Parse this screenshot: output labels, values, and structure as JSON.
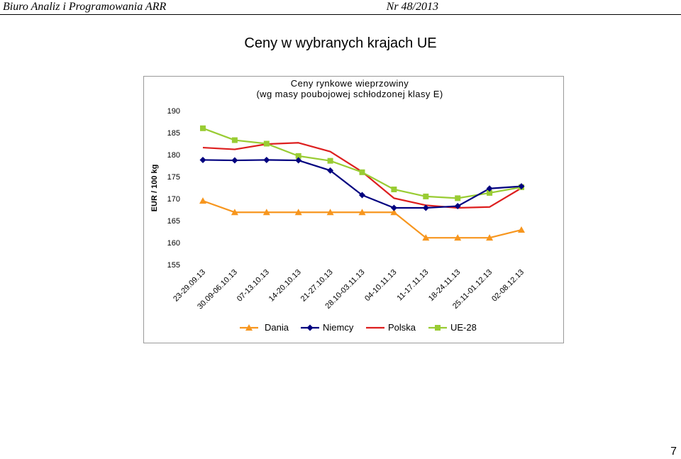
{
  "header": {
    "left": "Biuro Analiz i Programowania ARR",
    "right": "Nr 48/2013"
  },
  "page_title": "Ceny w wybranych krajach UE",
  "page_number": "7",
  "colors": {
    "Dania": "#f7961e",
    "Niemcy": "#00007f",
    "Polska": "#dd1f1f",
    "UE-28": "#99cc33"
  },
  "chart_data": {
    "type": "line",
    "title_lines": [
      "Ceny rynkowe wieprzowiny",
      "(wg masy poubojowej schłodzonej klasy E)"
    ],
    "ylabel": "EUR / 100 kg",
    "xlabel": "",
    "ylim": [
      155,
      190
    ],
    "yticks": [
      155,
      160,
      165,
      170,
      175,
      180,
      185,
      190
    ],
    "grid": false,
    "legend_position": "bottom",
    "categories": [
      "23-29.09.13",
      "30.09-06.10.13",
      "07-13.10.13",
      "14-20.10.13",
      "21-27.10.13",
      "28.10-03.11.13",
      "04-10.11.13",
      "11-17.11.13",
      "18-24.11.13",
      "25.11-01.12.13",
      "02-08.12.13"
    ],
    "series": [
      {
        "name": "Dania",
        "marker": "triangle",
        "values": [
          169.5,
          166.9,
          166.9,
          166.9,
          166.9,
          166.9,
          166.9,
          161.1,
          161.1,
          161.1,
          162.9
        ]
      },
      {
        "name": "Niemcy",
        "marker": "diamond",
        "values": [
          178.8,
          178.7,
          178.8,
          178.7,
          176.4,
          170.8,
          167.9,
          167.9,
          168.3,
          172.3,
          172.8
        ]
      },
      {
        "name": "Polska",
        "marker": "none",
        "values": [
          181.6,
          181.2,
          182.4,
          182.7,
          180.7,
          176.1,
          170.1,
          168.5,
          167.9,
          168.1,
          172.4
        ]
      },
      {
        "name": "UE-28",
        "marker": "square",
        "values": [
          186.0,
          183.3,
          182.5,
          179.7,
          178.6,
          176.0,
          172.1,
          170.5,
          170.1,
          171.3,
          172.6
        ]
      }
    ]
  }
}
